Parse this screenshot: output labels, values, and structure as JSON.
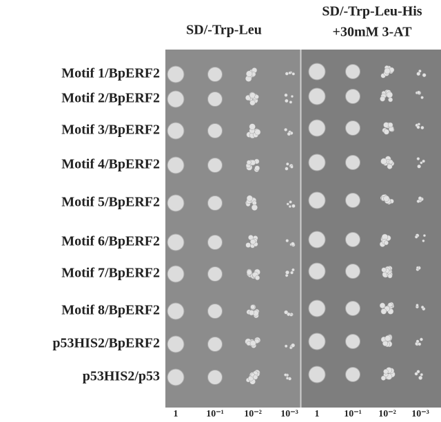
{
  "header": {
    "left": "SD/-Trp-Leu",
    "right_line1": "SD/-Trp-Leu-His",
    "right_line2": "+30mM 3-AT"
  },
  "rows": [
    "Motif 1/BpERF2",
    "Motif 2/BpERF2",
    "Motif 3/BpERF2",
    "Motif 4/BpERF2",
    "Motif 5/BpERF2",
    "Motif 6/BpERF2",
    "Motif 7/BpERF2",
    "Motif 8/BpERF2",
    "p53HIS2/BpERF2",
    "p53HIS2/p53"
  ],
  "dilutions": [
    "1",
    "10⁻¹",
    "10⁻²",
    "10⁻³",
    "1",
    "10⁻¹",
    "10⁻²",
    "10⁻³"
  ]
}
